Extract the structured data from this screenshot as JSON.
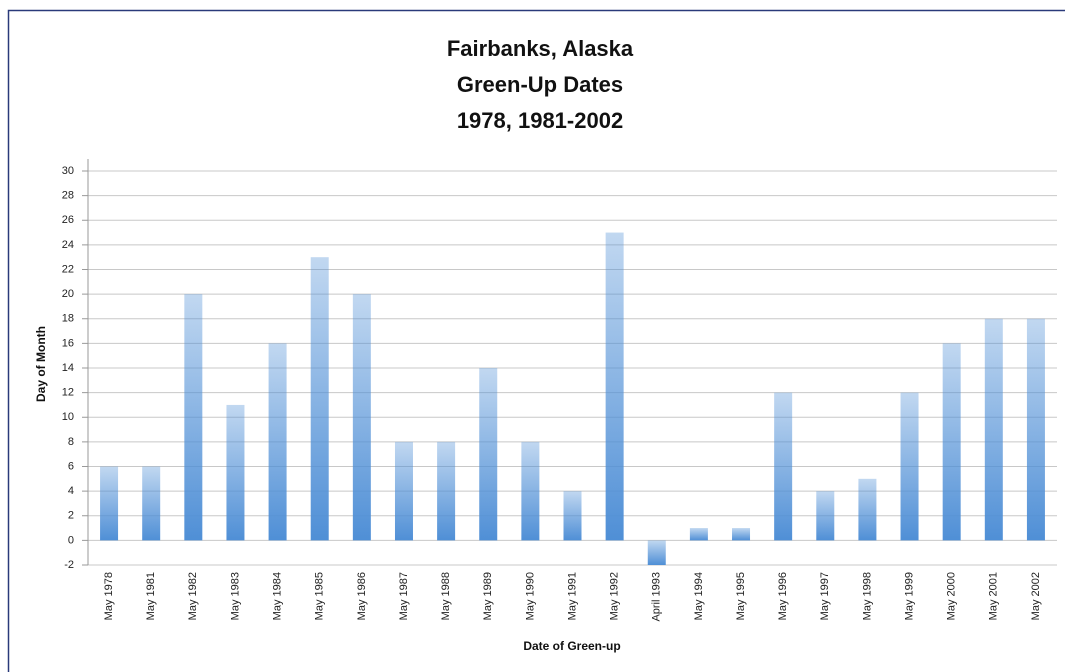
{
  "chart_data": {
    "type": "bar",
    "title": [
      "Fairbanks, Alaska",
      "Green-Up Dates",
      "1978, 1981-2002"
    ],
    "x_label": "Date of Green-up",
    "y_label": "Day of Month",
    "categories": [
      "May 1978",
      "May 1981",
      "May 1982",
      "May 1983",
      "May 1984",
      "May 1985",
      "May 1986",
      "May 1987",
      "May 1988",
      "May 1989",
      "May 1990",
      "May 1991",
      "May 1992",
      "April 1993",
      "May 1994",
      "May 1995",
      "May 1996",
      "May 1997",
      "May 1998",
      "May 1999",
      "May 2000",
      "May 2001",
      "May 2002"
    ],
    "values": [
      6,
      6,
      20,
      11,
      16,
      23,
      20,
      8,
      8,
      14,
      8,
      4,
      25,
      -2,
      1,
      1,
      12,
      4,
      5,
      12,
      16,
      18,
      18
    ],
    "color": "#4f8fd6",
    "ylim": [
      -2,
      30
    ],
    "yticks": [
      -2,
      0,
      2,
      4,
      6,
      8,
      10,
      12,
      14,
      16,
      18,
      20,
      22,
      24,
      26,
      28,
      30
    ],
    "grid": true
  }
}
